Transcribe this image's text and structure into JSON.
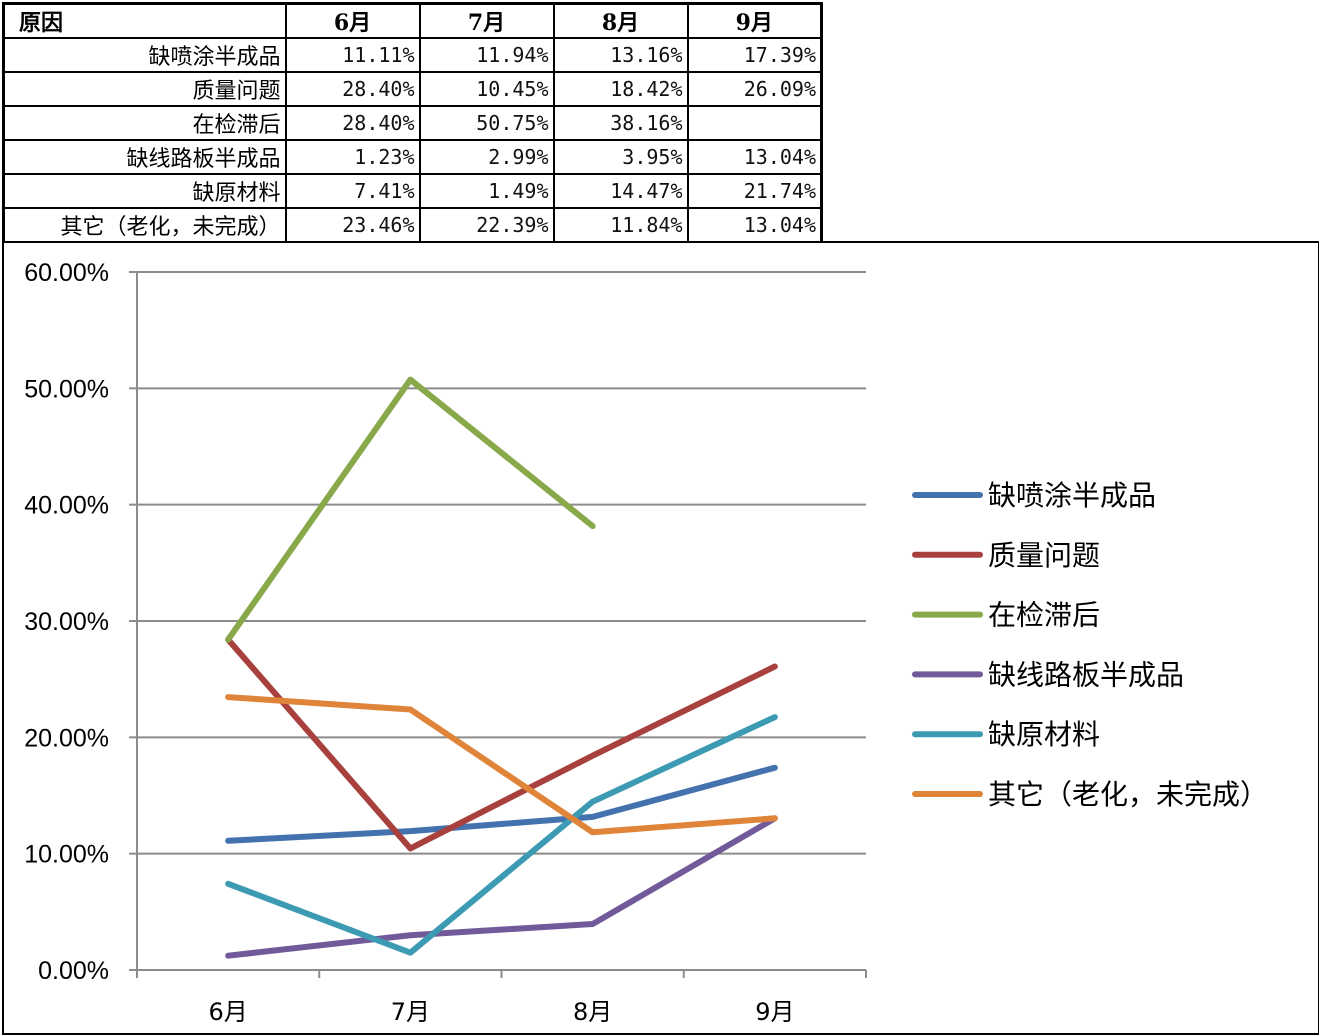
{
  "table": {
    "header": [
      "原因",
      "6月",
      "7月",
      "8月",
      "9月"
    ],
    "rows": [
      {
        "label": "缺喷涂半成品",
        "cells": [
          "11.11%",
          "11.94%",
          "13.16%",
          "17.39%"
        ]
      },
      {
        "label": "质量问题",
        "cells": [
          "28.40%",
          "10.45%",
          "18.42%",
          "26.09%"
        ]
      },
      {
        "label": "在检滞后",
        "cells": [
          "28.40%",
          "50.75%",
          "38.16%",
          ""
        ]
      },
      {
        "label": "缺线路板半成品",
        "cells": [
          "1.23%",
          "2.99%",
          "3.95%",
          "13.04%"
        ]
      },
      {
        "label": "缺原材料",
        "cells": [
          "7.41%",
          "1.49%",
          "14.47%",
          "21.74%"
        ]
      },
      {
        "label": "其它（老化，未完成）",
        "cells": [
          "23.46%",
          "22.39%",
          "11.84%",
          "13.04%"
        ]
      }
    ]
  },
  "chart_data": {
    "type": "line",
    "title": "",
    "xlabel": "",
    "ylabel": "",
    "categories": [
      "6月",
      "7月",
      "8月",
      "9月"
    ],
    "ylim": [
      0,
      60
    ],
    "y_ticks": [
      "0.00%",
      "10.00%",
      "20.00%",
      "30.00%",
      "40.00%",
      "50.00%",
      "60.00%"
    ],
    "grid": true,
    "legend_position": "right",
    "series": [
      {
        "name": "缺喷涂半成品",
        "color": "#4372ae",
        "values": [
          11.11,
          11.94,
          13.16,
          17.39
        ]
      },
      {
        "name": "质量问题",
        "color": "#a8413d",
        "values": [
          28.4,
          10.45,
          18.42,
          26.09
        ]
      },
      {
        "name": "在检滞后",
        "color": "#89a84a",
        "values": [
          28.4,
          50.75,
          38.16,
          null
        ]
      },
      {
        "name": "缺线路板半成品",
        "color": "#71599a",
        "values": [
          1.23,
          2.99,
          3.95,
          13.04
        ]
      },
      {
        "name": "缺原材料",
        "color": "#3d9ab3",
        "values": [
          7.41,
          1.49,
          14.47,
          21.74
        ]
      },
      {
        "name": "其它（老化，未完成）",
        "color": "#e0843a",
        "values": [
          23.46,
          22.39,
          11.84,
          13.04
        ]
      }
    ]
  }
}
